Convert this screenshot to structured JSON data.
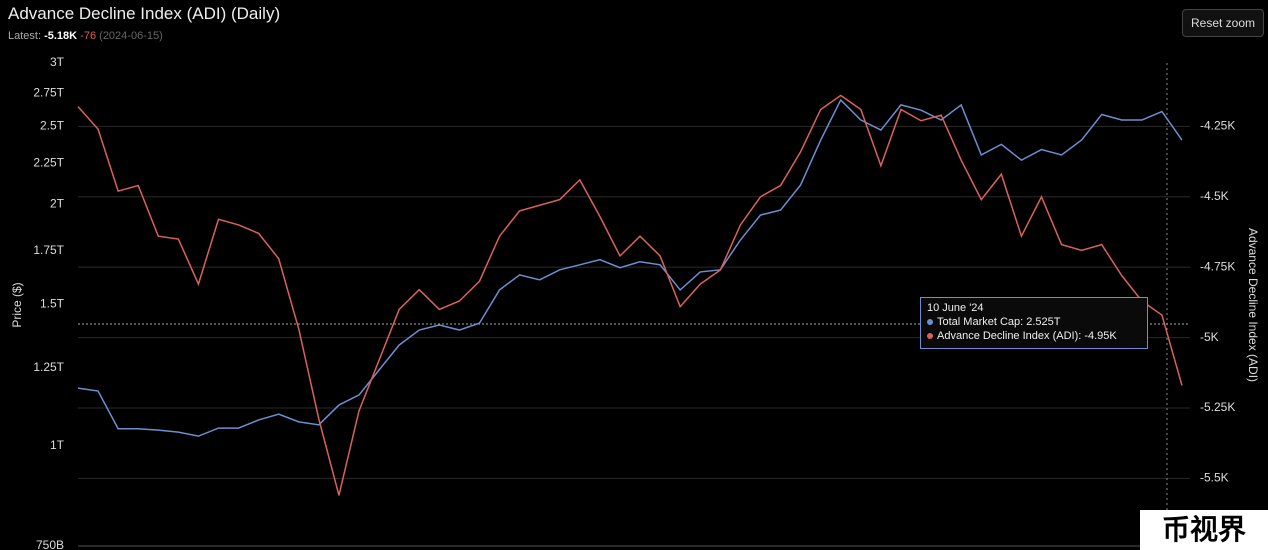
{
  "chart_data": {
    "type": "line",
    "title": "Advance Decline Index (ADI) (Daily)",
    "latest_label": "Latest:",
    "latest_value": "-5.18K",
    "latest_change": "-76",
    "latest_date": "(2024-06-15)",
    "reset_button": "Reset zoom",
    "y_label": "Price ($)",
    "y2_label": "Advance Decline Index (ADI)",
    "log_y": true,
    "grid": "y2",
    "ylim": [
      750000000000,
      3000000000000
    ],
    "yticks": [
      {
        "value": 750000000000,
        "label": "750B"
      },
      {
        "value": 1000000000000,
        "label": "1T"
      },
      {
        "value": 1250000000000,
        "label": "1.25T"
      },
      {
        "value": 1500000000000,
        "label": "1.5T"
      },
      {
        "value": 1750000000000,
        "label": "1.75T"
      },
      {
        "value": 2000000000000,
        "label": "2T"
      },
      {
        "value": 2250000000000,
        "label": "2.25T"
      },
      {
        "value": 2500000000000,
        "label": "2.5T"
      },
      {
        "value": 2750000000000,
        "label": "2.75T"
      },
      {
        "value": 3000000000000,
        "label": "3T"
      }
    ],
    "y2lim": [
      -5740,
      -4025
    ],
    "y2ticks": [
      {
        "value": -5500,
        "label": "-5.5K"
      },
      {
        "value": -5250,
        "label": "-5.25K"
      },
      {
        "value": -5000,
        "label": "-5K"
      },
      {
        "value": -4750,
        "label": "-4.75K"
      },
      {
        "value": -4500,
        "label": "-4.5K"
      },
      {
        "value": -4250,
        "label": "-4.25K"
      }
    ],
    "series": [
      {
        "name": "Total Market Cap",
        "color": "#6d8fd0",
        "values": [
          1180000000000,
          1170000000000,
          1050000000000,
          1050000000000,
          1046000000000,
          1040000000000,
          1028000000000,
          1052000000000,
          1052000000000,
          1077000000000,
          1095000000000,
          1071000000000,
          1062000000000,
          1124000000000,
          1157000000000,
          1243000000000,
          1335000000000,
          1394000000000,
          1414000000000,
          1394000000000,
          1422000000000,
          1564000000000,
          1633000000000,
          1610000000000,
          1657000000000,
          1681000000000,
          1706000000000,
          1667000000000,
          1696000000000,
          1681000000000,
          1564000000000,
          1647000000000,
          1657000000000,
          1805000000000,
          1939000000000,
          1967000000000,
          2114000000000,
          2405000000000,
          2698000000000,
          2547000000000,
          2475000000000,
          2660000000000,
          2620000000000,
          2547000000000,
          2660000000000,
          2304000000000,
          2375000000000,
          2270000000000,
          2340000000000,
          2304000000000,
          2405000000000,
          2588000000000,
          2547000000000,
          2547000000000,
          2610000000000,
          2405000000000
        ]
      },
      {
        "name": "Advance Decline Index (ADI)",
        "color": "#d9625c",
        "axis": "y2",
        "values": [
          -4180,
          -4260,
          -4480,
          -4460,
          -4640,
          -4650,
          -4810,
          -4580,
          -4600,
          -4630,
          -4720,
          -4970,
          -5290,
          -5560,
          -5260,
          -5080,
          -4900,
          -4830,
          -4900,
          -4870,
          -4800,
          -4640,
          -4550,
          -4530,
          -4510,
          -4440,
          -4570,
          -4710,
          -4640,
          -4710,
          -4890,
          -4810,
          -4760,
          -4600,
          -4500,
          -4460,
          -4340,
          -4190,
          -4140,
          -4190,
          -4390,
          -4190,
          -4230,
          -4210,
          -4370,
          -4510,
          -4420,
          -4640,
          -4500,
          -4670,
          -4690,
          -4670,
          -4780,
          -4870,
          -4920,
          -5170
        ]
      }
    ],
    "tooltip": {
      "date": "10 June '24",
      "lines": [
        "Total Market Cap: 2.525T",
        "Advance Decline Index (ADI): -4.95K"
      ]
    },
    "watermark": "币视界"
  }
}
